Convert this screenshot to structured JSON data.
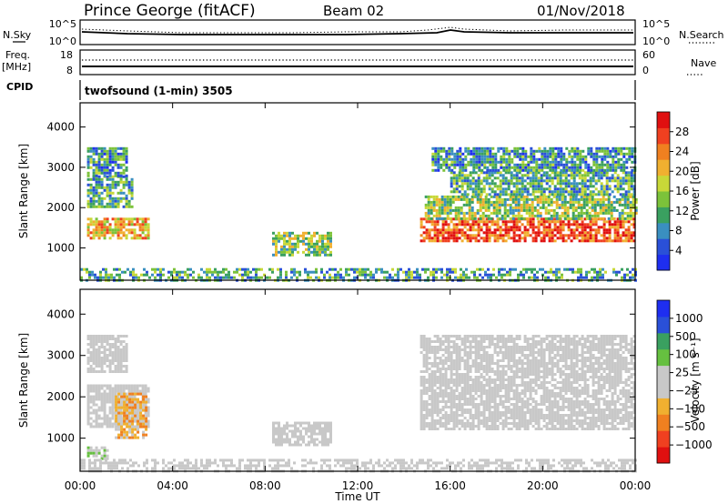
{
  "header": {
    "station": "Prince George (fitACF)",
    "beam": "Beam 02",
    "date": "01/Nov/2018"
  },
  "top_panels": {
    "nsky_label": "N.Sky",
    "nsky_ticks": [
      "10^5",
      "10^0"
    ],
    "nsearch_ticks": [
      "10^5",
      "10^0"
    ],
    "nsearch_label": "N.Search",
    "freq_label_1": "Freq.",
    "freq_label_2": "[MHz]",
    "freq_ticks": [
      "18",
      "8"
    ],
    "nave_ticks": [
      "60",
      "0"
    ],
    "nave_label": "Nave",
    "cpid_label": "CPID",
    "cpid_text": "twofsound (1-min) 3505"
  },
  "x_axis": {
    "ticks": [
      "00:00",
      "04:00",
      "08:00",
      "12:00",
      "16:00",
      "20:00",
      "00:00"
    ],
    "hours": [
      0,
      4,
      8,
      12,
      16,
      20,
      24
    ],
    "label": "Time UT"
  },
  "y_axis": {
    "label": "Slant Range [km]",
    "ticks": [
      "1000",
      "2000",
      "3000",
      "4000"
    ],
    "values": [
      1000,
      2000,
      3000,
      4000
    ],
    "range": [
      200,
      4600
    ]
  },
  "power_colorbar": {
    "label": "Power [dB]",
    "ticks": [
      "4",
      "8",
      "12",
      "16",
      "20",
      "24",
      "28"
    ],
    "colors": [
      "#1e2ef0",
      "#2a50d8",
      "#3a8fc0",
      "#3aa060",
      "#7cc23a",
      "#c8d838",
      "#f0b030",
      "#f08020",
      "#f04020",
      "#e01010"
    ]
  },
  "velocity_colorbar": {
    "label": "Velocity [m s⁻¹]",
    "ticks": [
      "1000",
      "500",
      "100",
      "25",
      "−25",
      "−100",
      "−500",
      "−1000"
    ],
    "colors": [
      "#1e2ef0",
      "#2a50d8",
      "#3aa060",
      "#66c040",
      "#c8c8c8",
      "#c8c8c8",
      "#f0b030",
      "#f08020",
      "#f04020",
      "#e01010"
    ]
  },
  "chart_data": [
    {
      "type": "heatmap",
      "panel": "power",
      "xlabel": "Time UT",
      "ylabel": "Slant Range [km]",
      "xlim": [
        0,
        24
      ],
      "ylim": [
        200,
        4600
      ],
      "colorbar_label": "Power [dB]",
      "colorbar_range": [
        0,
        30
      ],
      "regions": [
        {
          "t0": 0.3,
          "t1": 2.9,
          "r0": 1250,
          "r1": 1750,
          "level": 20
        },
        {
          "t0": 0.3,
          "t1": 2.2,
          "r0": 2000,
          "r1": 2800,
          "level": 11
        },
        {
          "t0": 0.3,
          "t1": 2.0,
          "r0": 2800,
          "r1": 3500,
          "level": 9
        },
        {
          "t0": 8.3,
          "t1": 10.8,
          "r0": 850,
          "r1": 1400,
          "level": 14
        },
        {
          "t0": 14.7,
          "t1": 24.0,
          "r0": 1200,
          "r1": 1750,
          "level": 25
        },
        {
          "t0": 14.9,
          "t1": 24.0,
          "r0": 1750,
          "r1": 2300,
          "level": 14
        },
        {
          "t0": 16.0,
          "t1": 24.0,
          "r0": 2300,
          "r1": 2900,
          "level": 11
        },
        {
          "t0": 15.2,
          "t1": 24.0,
          "r0": 2900,
          "r1": 3500,
          "level": 9
        },
        {
          "t0": 0.0,
          "t1": 24.0,
          "r0": 200,
          "r1": 500,
          "level": 10
        }
      ]
    },
    {
      "type": "heatmap",
      "panel": "velocity",
      "xlabel": "Time UT",
      "ylabel": "Slant Range [km]",
      "xlim": [
        0,
        24
      ],
      "ylim": [
        200,
        4600
      ],
      "colorbar_label": "Velocity [m s⁻¹]",
      "colorbar_range": [
        -1000,
        1000
      ],
      "regions": [
        {
          "t0": 0.3,
          "t1": 2.9,
          "r0": 1250,
          "r1": 2300,
          "level": -50
        },
        {
          "t0": 1.5,
          "t1": 2.9,
          "r0": 1000,
          "r1": 2100,
          "level": -300
        },
        {
          "t0": 0.3,
          "t1": 1.2,
          "r0": 500,
          "r1": 800,
          "level": 100
        },
        {
          "t0": 0.3,
          "t1": 2.0,
          "r0": 2600,
          "r1": 3500,
          "level": 0
        },
        {
          "t0": 8.3,
          "t1": 10.8,
          "r0": 850,
          "r1": 1400,
          "level": 0
        },
        {
          "t0": 14.7,
          "t1": 24.0,
          "r0": 1200,
          "r1": 3500,
          "level": 0
        },
        {
          "t0": 0.0,
          "t1": 24.0,
          "r0": 200,
          "r1": 500,
          "level": -60
        }
      ]
    }
  ]
}
